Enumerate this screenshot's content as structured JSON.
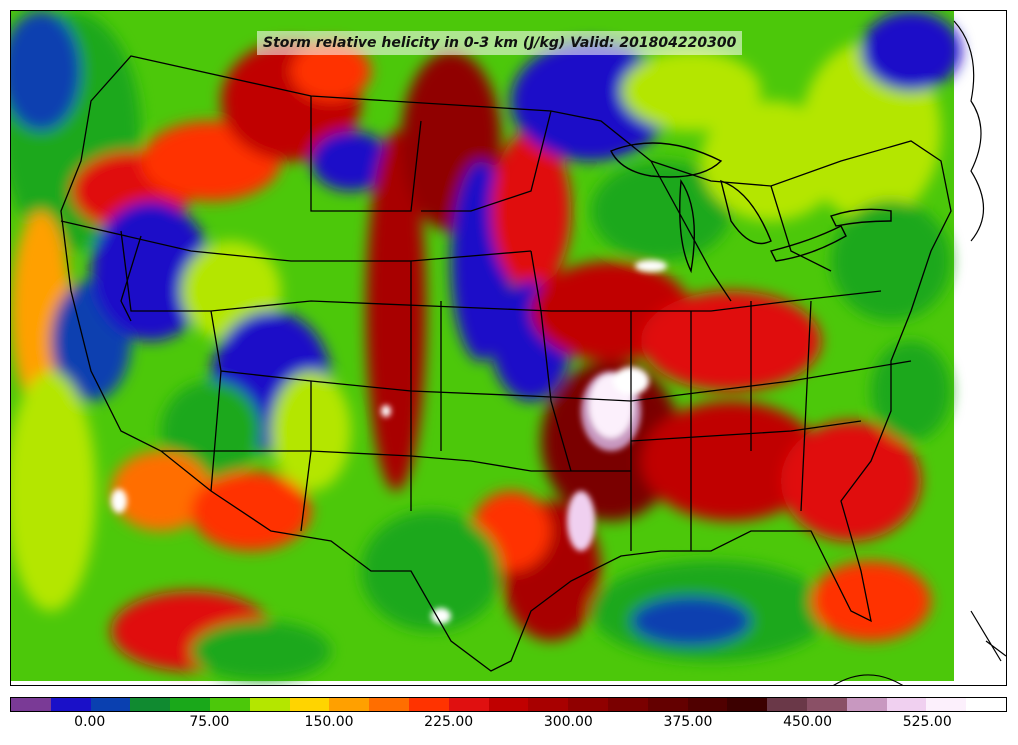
{
  "title": "Storm relative helicity in 0-3 km (J/kg) Valid: 201804220300",
  "colorbar": {
    "colors": [
      "#7a3a96",
      "#1a10c8",
      "#0a40b0",
      "#108a30",
      "#1aa81a",
      "#4cc80a",
      "#b4e600",
      "#ffd400",
      "#ffa000",
      "#ff6e00",
      "#ff3300",
      "#e01010",
      "#c00000",
      "#a80000",
      "#900000",
      "#7a0000",
      "#640000",
      "#500000",
      "#3c0000",
      "#6a3848",
      "#8a5066",
      "#c898c0",
      "#f0d0f0",
      "#fcf0fc",
      "#ffffff"
    ],
    "tick_labels": [
      "0.00",
      "75.00",
      "150.00",
      "225.00",
      "300.00",
      "375.00",
      "450.00",
      "525.00"
    ],
    "tick_values": [
      0,
      75,
      150,
      225,
      300,
      375,
      450,
      525
    ],
    "range": [
      -50,
      575
    ]
  }
}
